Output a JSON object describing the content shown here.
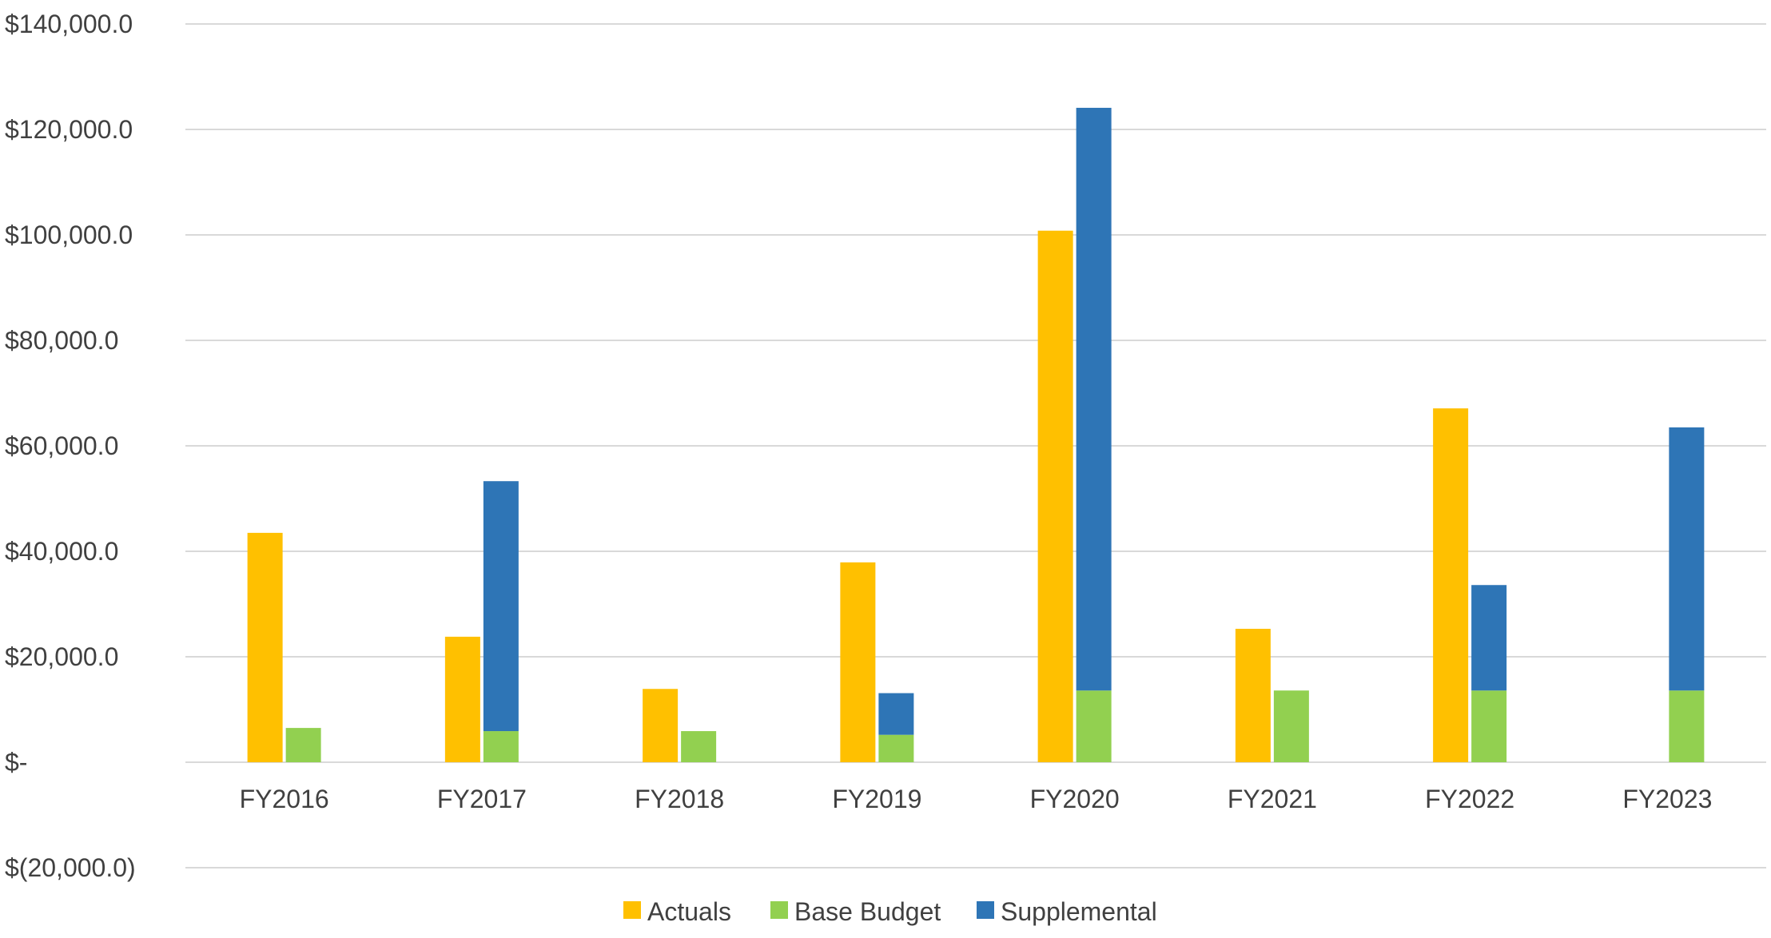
{
  "chart_data": {
    "type": "bar",
    "title": "",
    "xlabel": "",
    "ylabel": "",
    "categories": [
      "FY2016",
      "FY2017",
      "FY2018",
      "FY2019",
      "FY2020",
      "FY2021",
      "FY2022",
      "FY2023"
    ],
    "series": [
      {
        "name": "Actuals",
        "color": "#FFC000",
        "stack": "actuals",
        "values": [
          43500,
          23800,
          13900,
          37900,
          100800,
          25300,
          67100,
          null
        ]
      },
      {
        "name": "Base Budget",
        "color": "#92D050",
        "stack": "budget",
        "values": [
          6500,
          5900,
          5900,
          5200,
          13600,
          13600,
          13600,
          13600
        ]
      },
      {
        "name": "Supplemental",
        "color": "#2E75B6",
        "stack": "budget",
        "values": [
          null,
          47400,
          null,
          7900,
          110500,
          null,
          20000,
          49900
        ]
      }
    ],
    "ylim": [
      -20000,
      140000
    ],
    "yticks": [
      -20000,
      0,
      20000,
      40000,
      60000,
      80000,
      100000,
      120000,
      140000
    ],
    "ytick_labels": [
      "$(20,000.0)",
      "$-",
      "$20,000.0",
      "$40,000.0",
      "$60,000.0",
      "$80,000.0",
      "$100,000.0",
      "$120,000.0",
      "$140,000.0"
    ],
    "grid": true,
    "gridline_color": "#D9D9D9",
    "legend_position": "bottom"
  }
}
